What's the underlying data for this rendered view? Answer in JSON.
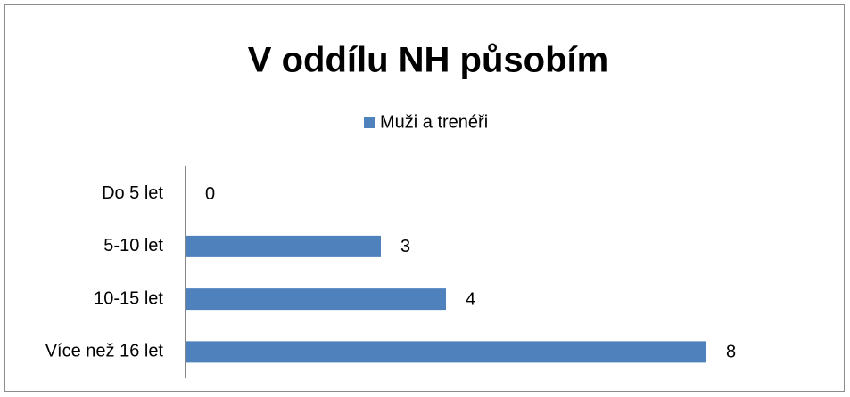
{
  "chart_data": {
    "type": "bar",
    "orientation": "horizontal",
    "title": "V oddílu NH působím",
    "categories": [
      "Do 5 let",
      "5-10 let",
      "10-15 let",
      "Více než 16 let"
    ],
    "series": [
      {
        "name": "Muži a trenéři",
        "color": "#4f81bd",
        "values": [
          0,
          3,
          4,
          8
        ]
      }
    ],
    "legend": "top"
  }
}
